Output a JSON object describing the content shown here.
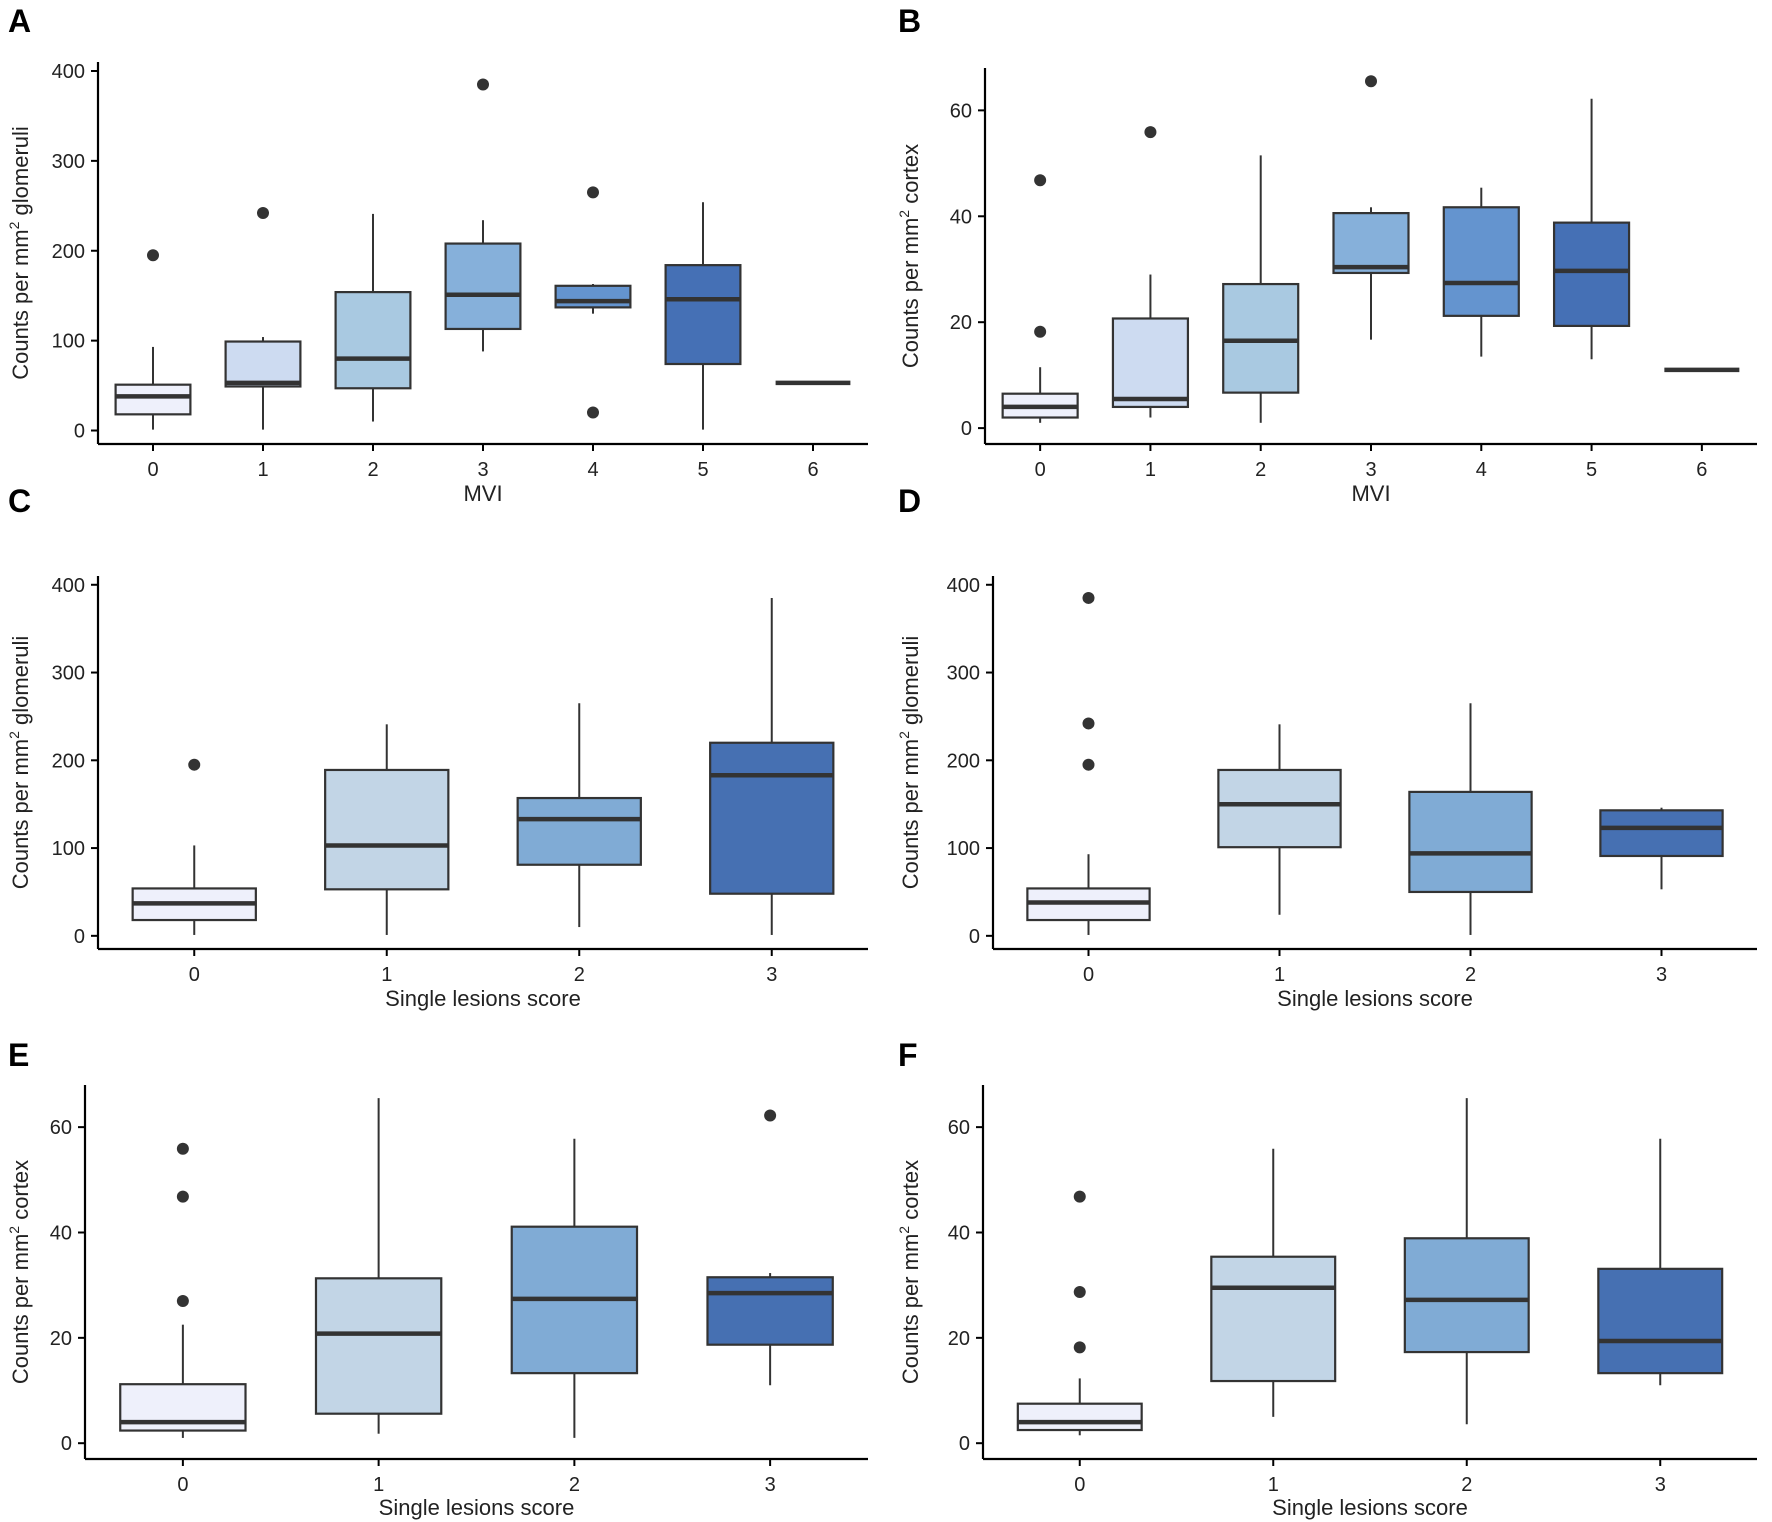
{
  "figure": {
    "chart_data": [
      {
        "panel": "A",
        "type": "boxplot",
        "ylabel_main": "Counts per mm",
        "ylabel_sup": "2",
        "ylabel_tail": " glomeruli",
        "xlabel": "MVI",
        "categories": [
          "0",
          "1",
          "2",
          "3",
          "4",
          "5",
          "6"
        ],
        "ylim": [
          -15,
          410
        ],
        "yticks": [
          0,
          100,
          200,
          300,
          400
        ],
        "ytick_labels": [
          "0",
          "100",
          "200",
          "300",
          "400"
        ],
        "boxes": [
          {
            "min": 1,
            "q1": 18,
            "median": 38,
            "q3": 51,
            "max": 93,
            "outliers": [
              195
            ]
          },
          {
            "min": 1,
            "q1": 49,
            "median": 53,
            "q3": 99,
            "max": 104,
            "outliers": [
              242
            ]
          },
          {
            "min": 10,
            "q1": 47,
            "median": 80,
            "q3": 154,
            "max": 241,
            "outliers": []
          },
          {
            "min": 88,
            "q1": 113,
            "median": 151,
            "q3": 208,
            "max": 234,
            "outliers": [
              385
            ]
          },
          {
            "min": 130,
            "q1": 137,
            "median": 144,
            "q3": 161,
            "max": 163,
            "outliers": [
              265,
              20
            ]
          },
          {
            "min": 1,
            "q1": 74,
            "median": 146,
            "q3": 184,
            "max": 254,
            "outliers": []
          },
          {
            "min": 53,
            "q1": 53,
            "median": 53,
            "q3": 53,
            "max": 53,
            "outliers": []
          }
        ]
      },
      {
        "panel": "B",
        "type": "boxplot",
        "ylabel_main": "Counts per mm",
        "ylabel_sup": "2",
        "ylabel_tail": " cortex",
        "xlabel": "MVI",
        "categories": [
          "0",
          "1",
          "2",
          "3",
          "4",
          "5",
          "6"
        ],
        "ylim": [
          -3,
          68
        ],
        "yticks": [
          0,
          20,
          40,
          60
        ],
        "ytick_labels": [
          "0",
          "20",
          "40",
          "60"
        ],
        "boxes": [
          {
            "min": 1,
            "q1": 2,
            "median": 4,
            "q3": 6.5,
            "max": 11.5,
            "outliers": [
              46.8,
              18.2
            ]
          },
          {
            "min": 2,
            "q1": 4,
            "median": 5.5,
            "q3": 20.7,
            "max": 29,
            "outliers": [
              55.9
            ]
          },
          {
            "min": 1,
            "q1": 6.7,
            "median": 16.5,
            "q3": 27.2,
            "max": 51.5,
            "outliers": []
          },
          {
            "min": 16.7,
            "q1": 29.3,
            "median": 30.4,
            "q3": 40.6,
            "max": 41.7,
            "outliers": [
              65.5
            ]
          },
          {
            "min": 13.5,
            "q1": 21.2,
            "median": 27.4,
            "q3": 41.7,
            "max": 45.4,
            "outliers": []
          },
          {
            "min": 13,
            "q1": 19.3,
            "median": 29.7,
            "q3": 38.8,
            "max": 62.2,
            "outliers": []
          },
          {
            "min": 11,
            "q1": 11,
            "median": 11,
            "q3": 11,
            "max": 11,
            "outliers": []
          }
        ]
      },
      {
        "panel": "C",
        "type": "boxplot",
        "ylabel_main": "Counts per mm",
        "ylabel_sup": "2",
        "ylabel_tail": " glomeruli",
        "xlabel": "Single lesions score",
        "categories": [
          "0",
          "1",
          "2",
          "3"
        ],
        "ylim": [
          -15,
          410
        ],
        "yticks": [
          0,
          100,
          200,
          300,
          400
        ],
        "ytick_labels": [
          "0",
          "100",
          "200",
          "300",
          "400"
        ],
        "boxes": [
          {
            "min": 1,
            "q1": 18,
            "median": 37,
            "q3": 54,
            "max": 103,
            "outliers": [
              195
            ]
          },
          {
            "min": 1,
            "q1": 53,
            "median": 103,
            "q3": 189,
            "max": 241,
            "outliers": []
          },
          {
            "min": 10,
            "q1": 81,
            "median": 133,
            "q3": 157,
            "max": 265,
            "outliers": []
          },
          {
            "min": 1,
            "q1": 48,
            "median": 183,
            "q3": 220,
            "max": 385,
            "outliers": []
          }
        ]
      },
      {
        "panel": "D",
        "type": "boxplot",
        "ylabel_main": "Counts per mm",
        "ylabel_sup": "2",
        "ylabel_tail": " glomeruli",
        "xlabel": "Single lesions score",
        "categories": [
          "0",
          "1",
          "2",
          "3"
        ],
        "ylim": [
          -15,
          410
        ],
        "yticks": [
          0,
          100,
          200,
          300,
          400
        ],
        "ytick_labels": [
          "0",
          "100",
          "200",
          "300",
          "400"
        ],
        "boxes": [
          {
            "min": 1,
            "q1": 18,
            "median": 38,
            "q3": 54,
            "max": 93,
            "outliers": [
              385,
              242,
              195
            ]
          },
          {
            "min": 24,
            "q1": 101,
            "median": 150,
            "q3": 189,
            "max": 241,
            "outliers": []
          },
          {
            "min": 1,
            "q1": 50,
            "median": 94,
            "q3": 164,
            "max": 265,
            "outliers": []
          },
          {
            "min": 53,
            "q1": 91,
            "median": 123,
            "q3": 143,
            "max": 146,
            "outliers": []
          }
        ]
      },
      {
        "panel": "E",
        "type": "boxplot",
        "ylabel_main": "Counts per mm",
        "ylabel_sup": "2",
        "ylabel_tail": " cortex",
        "xlabel": "Single lesions score",
        "categories": [
          "0",
          "1",
          "2",
          "3"
        ],
        "ylim": [
          -3,
          68
        ],
        "yticks": [
          0,
          20,
          40,
          60
        ],
        "ytick_labels": [
          "0",
          "20",
          "40",
          "60"
        ],
        "boxes": [
          {
            "min": 1,
            "q1": 2.4,
            "median": 4,
            "q3": 11.2,
            "max": 22.5,
            "outliers": [
              55.9,
              46.8,
              27
            ]
          },
          {
            "min": 1.8,
            "q1": 5.6,
            "median": 20.8,
            "q3": 31.3,
            "max": 65.5,
            "outliers": []
          },
          {
            "min": 1,
            "q1": 13.3,
            "median": 27.4,
            "q3": 41.1,
            "max": 57.8,
            "outliers": []
          },
          {
            "min": 11,
            "q1": 18.7,
            "median": 28.5,
            "q3": 31.5,
            "max": 32.3,
            "outliers": [
              62.2
            ]
          }
        ]
      },
      {
        "panel": "F",
        "type": "boxplot",
        "ylabel_main": "Counts per mm",
        "ylabel_sup": "2",
        "ylabel_tail": " cortex",
        "xlabel": "Single lesions score",
        "categories": [
          "0",
          "1",
          "2",
          "3"
        ],
        "ylim": [
          -3,
          68
        ],
        "yticks": [
          0,
          20,
          40,
          60
        ],
        "ytick_labels": [
          "0",
          "20",
          "40",
          "60"
        ],
        "boxes": [
          {
            "min": 1.5,
            "q1": 2.5,
            "median": 4,
            "q3": 7.5,
            "max": 12.3,
            "outliers": [
              46.8,
              28.7,
              18.2
            ]
          },
          {
            "min": 5,
            "q1": 11.8,
            "median": 29.5,
            "q3": 35.4,
            "max": 55.9,
            "outliers": []
          },
          {
            "min": 3.6,
            "q1": 17.3,
            "median": 27.2,
            "q3": 38.9,
            "max": 65.5,
            "outliers": []
          },
          {
            "min": 11,
            "q1": 13.3,
            "median": 19.4,
            "q3": 33.1,
            "max": 57.8,
            "outliers": []
          }
        ]
      }
    ],
    "palette7": [
      "#eef0fb",
      "#cddbf1",
      "#a9c9e1",
      "#86b0da",
      "#6494cf",
      "#4570b5",
      "#3a64ac"
    ],
    "palette4": [
      "#eef0fb",
      "#c2d5e6",
      "#80abd5",
      "#4670b2"
    ],
    "stroke_color": "#333333",
    "axis_color": "#000000"
  }
}
